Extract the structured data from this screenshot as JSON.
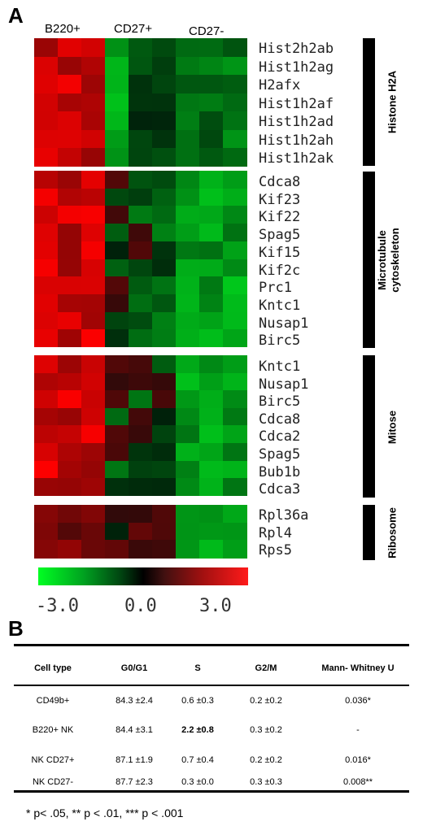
{
  "panel_a_label": "A",
  "panel_b_label": "B",
  "column_headers": [
    "B220+",
    "CD27+",
    "CD27-"
  ],
  "groups": [
    {
      "label": "Histone H2A",
      "genes": [
        "Hist2h2ab",
        "Hist1h2ag",
        "H2afx",
        "Hist1h2af",
        "Hist1h2ad",
        "Hist1h2ah",
        "Hist1h2ak"
      ]
    },
    {
      "label_line1": "Microtubule",
      "label_line2": "cytoskeleton",
      "genes": [
        "Cdca8",
        "Kif23",
        "Kif22",
        "Spag5",
        "Kif15",
        "Kif2c",
        "Prc1",
        "Kntc1",
        "Nusap1",
        "Birc5"
      ]
    },
    {
      "label": "Mitose",
      "genes": [
        "Kntc1",
        "Nusap1",
        "Birc5",
        "Cdca8",
        "Cdca2",
        "Spag5",
        "Bub1b",
        "Cdca3"
      ]
    },
    {
      "label": "Ribosome",
      "genes": [
        "Rpl36a",
        "Rpl4",
        "Rps5"
      ]
    }
  ],
  "color_scale": {
    "min_label": "-3.0",
    "mid_label": "0.0",
    "max_label": "3.0",
    "low_color": "#00ff22",
    "mid_color": "#000000",
    "high_color": "#ff1a1a"
  },
  "table": {
    "headers": [
      "Cell type",
      "G0/G1",
      "S",
      "G2/M",
      "Mann- Whitney U"
    ],
    "rows": [
      [
        "CD49b+",
        "84.3 ±2.4",
        "0.6 ±0.3",
        "0.2 ±0.2",
        "0.036*"
      ],
      [
        "B220+ NK",
        "84.4 ±3.1",
        "2.2 ±0.8",
        "0.3 ±0.2",
        "-"
      ],
      [
        "NK CD27+",
        "87.1 ±1.9",
        "0.7 ±0.4",
        "0.2 ±0.2",
        "0.016*"
      ],
      [
        "NK CD27-",
        "87.7 ±2.3",
        "0.3 ±0.0",
        "0.3 ±0.3",
        "0.008**"
      ]
    ]
  },
  "footnote": "* p< .05, ** p < .01, *** p < .001"
}
